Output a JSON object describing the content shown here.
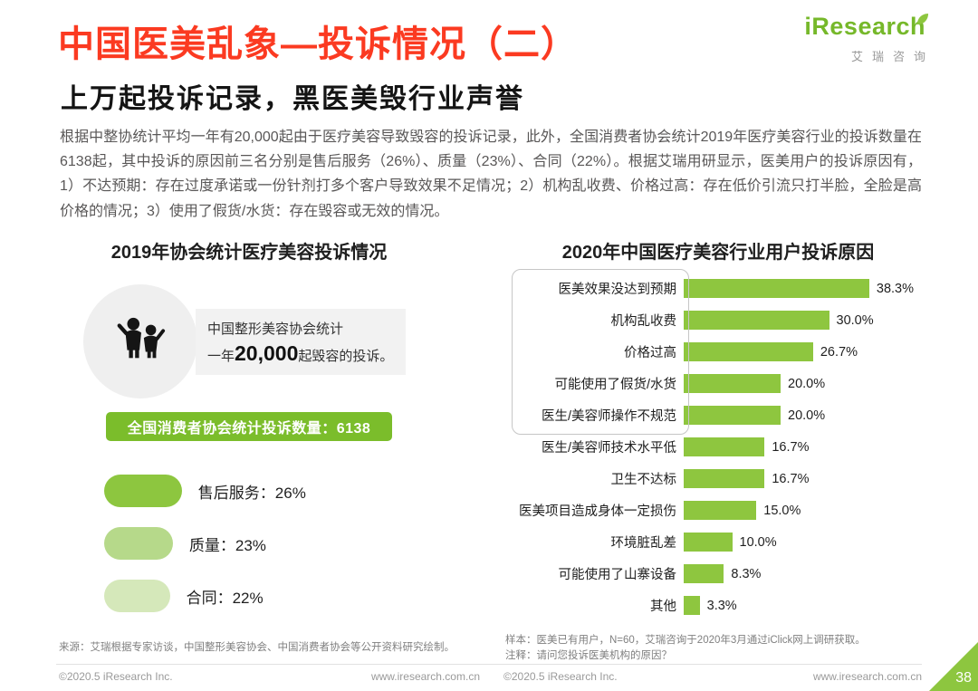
{
  "page": {
    "title": "中国医美乱象—投诉情况（二）",
    "subtitle": "上万起投诉记录，黑医美毁行业声誉",
    "body_text": "根据中整协统计平均一年有20,000起由于医疗美容导致毁容的投诉记录，此外，全国消费者协会统计2019年医疗美容行业的投诉数量在6138起，其中投诉的原因前三名分别是售后服务（26%）、质量（23%）、合同（22%）。根据艾瑞用研显示，医美用户的投诉原因有，1）不达预期：存在过度承诺或一份针剂打多个客户导致效果不足情况；2）机构乱收费、价格过高：存在低价引流只打半脸，全脸是高价格的情况；3）使用了假货/水货：存在毁容或无效的情况。",
    "page_number": "38"
  },
  "logo": {
    "brand": "iResearch",
    "subbrand": "艾瑞咨询"
  },
  "colors": {
    "accent_red": "#fb3a21",
    "brand_green": "#8dc63f",
    "bar_green": "#8ec63f",
    "badge_green": "#7bbd2b"
  },
  "left_panel": {
    "stat_line1": "中国整形美容协会统计",
    "stat_prefix": "一年",
    "stat_number": "20,000",
    "stat_suffix": "起毁容的投诉。",
    "badge_label": "全国消费者协会统计投诉数量：6138",
    "pill_labels": [
      "售后服务：26%",
      "质量：23%",
      "合同：22%"
    ],
    "pill_colors": [
      "#8dc63f",
      "#b6d98a",
      "#d5e8ba"
    ]
  },
  "chart_data": [
    {
      "type": "bar",
      "title": "2019年协会统计医疗美容投诉情况",
      "categories": [
        "售后服务",
        "质量",
        "合同"
      ],
      "values": [
        26,
        23,
        22
      ],
      "unit": "%",
      "annotations": [
        "中国整形美容协会统计一年20,000起毁容的投诉。",
        "全国消费者协会统计投诉数量：6138"
      ]
    },
    {
      "type": "bar",
      "orientation": "horizontal",
      "title": "2020年中国医疗美容行业用户投诉原因",
      "categories": [
        "医美效果没达到预期",
        "机构乱收费",
        "价格过高",
        "可能使用了假货/水货",
        "医生/美容师操作不规范",
        "医生/美容师技术水平低",
        "卫生不达标",
        "医美项目造成身体一定损伤",
        "环境脏乱差",
        "可能使用了山寨设备",
        "其他"
      ],
      "values": [
        38.3,
        30.0,
        26.7,
        20.0,
        20.0,
        16.7,
        16.7,
        15.0,
        10.0,
        8.3,
        3.3
      ],
      "display_values": [
        "38.3%",
        "30.0%",
        "26.7%",
        "20.0%",
        "20.0%",
        "16.7%",
        "16.7%",
        "15.0%",
        "10.0%",
        "8.3%",
        "3.3%"
      ],
      "unit": "%",
      "xlim": [
        0,
        40
      ],
      "highlight_group_first_n": 5,
      "grid": false,
      "legend": false
    }
  ],
  "sources": {
    "left": "来源：艾瑞根据专家访谈，中国整形美容协会、中国消费者协会等公开资料研究绘制。",
    "right_sample": "样本：医美已有用户，N=60，艾瑞咨询于2020年3月通过iClick网上调研获取。",
    "right_note": "注释：请问您投诉医美机构的原因？"
  },
  "footer": {
    "copyright": "©2020.5 iResearch Inc.",
    "website": "www.iresearch.com.cn"
  }
}
